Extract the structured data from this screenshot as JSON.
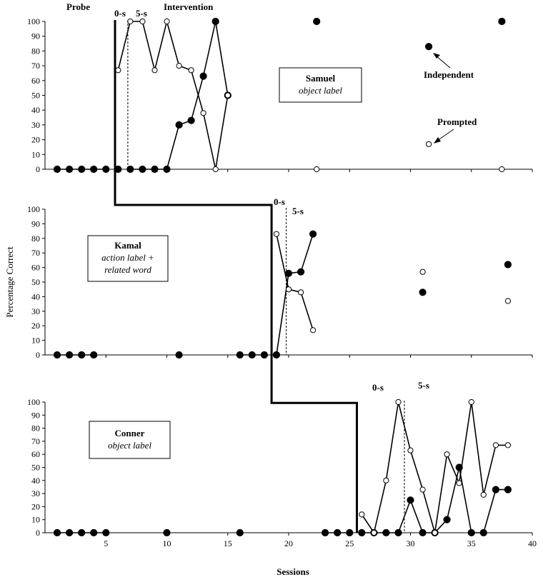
{
  "chart_data": {
    "type": "line",
    "ylabel": "Percentage Correct",
    "xlabel": "Sessions",
    "xlim": [
      0,
      40
    ],
    "ylim": [
      0,
      100
    ],
    "x_ticks": [
      5,
      10,
      15,
      20,
      25,
      30,
      35,
      40
    ],
    "y_ticks": [
      0,
      10,
      20,
      30,
      40,
      50,
      60,
      70,
      80,
      90,
      100
    ],
    "grid": false,
    "panels": [
      {
        "participant": "Samuel",
        "target": "object label",
        "phase_labels": [
          "Probe",
          "0-s",
          "5-s",
          "Intervention"
        ],
        "annotations": [
          "Independent",
          "Prompted"
        ],
        "series": [
          {
            "name": "Independent",
            "marker": "filled",
            "segments": [
              [
                [
                  1,
                  0
                ],
                [
                  2,
                  0
                ],
                [
                  3,
                  0
                ],
                [
                  4,
                  0
                ],
                [
                  5,
                  0
                ]
              ],
              [
                [
                  7,
                  0
                ],
                [
                  8,
                  0
                ],
                [
                  9,
                  0
                ],
                [
                  10,
                  0
                ],
                [
                  11,
                  30
                ],
                [
                  12,
                  33
                ],
                [
                  13,
                  63
                ],
                [
                  14,
                  100
                ],
                [
                  15,
                  50
                ]
              ]
            ],
            "points": [
              [
                6,
                0
              ],
              [
                22.3,
                100
              ],
              [
                31.5,
                83
              ],
              [
                37.5,
                100
              ]
            ]
          },
          {
            "name": "Prompted",
            "marker": "open",
            "segments": [
              [
                [
                  6,
                  67
                ],
                [
                  7,
                  100
                ],
                [
                  8,
                  100
                ],
                [
                  9,
                  67
                ],
                [
                  10,
                  100
                ],
                [
                  11,
                  70
                ],
                [
                  12,
                  67
                ],
                [
                  13,
                  38
                ],
                [
                  14,
                  0
                ],
                [
                  15,
                  50
                ]
              ]
            ],
            "points": [
              [
                22.3,
                0
              ],
              [
                31.5,
                17
              ],
              [
                37.5,
                0
              ]
            ]
          }
        ]
      },
      {
        "participant": "Kamal",
        "target": "action label + related word",
        "phase_labels": [
          "0-s",
          "5-s"
        ],
        "annotations": [],
        "series": [
          {
            "name": "Independent",
            "marker": "filled",
            "segments": [
              [
                [
                  1,
                  0
                ],
                [
                  2,
                  0
                ],
                [
                  3,
                  0
                ],
                [
                  4,
                  0
                ]
              ],
              [
                [
                  16,
                  0
                ],
                [
                  17,
                  0
                ],
                [
                  18,
                  0
                ]
              ],
              [
                [
                  19,
                  0
                ],
                [
                  20,
                  56
                ],
                [
                  21,
                  57
                ],
                [
                  22,
                  83
                ]
              ]
            ],
            "points": [
              [
                11,
                0
              ],
              [
                31,
                43
              ],
              [
                38,
                62
              ]
            ]
          },
          {
            "name": "Prompted",
            "marker": "open",
            "segments": [
              [
                [
                  19,
                  83
                ],
                [
                  20,
                  45
                ],
                [
                  21,
                  43
                ],
                [
                  22,
                  17
                ]
              ]
            ],
            "points": [
              [
                31,
                57
              ],
              [
                38,
                37
              ]
            ]
          }
        ]
      },
      {
        "participant": "Conner",
        "target": "object label",
        "phase_labels": [
          "0-s",
          "5-s"
        ],
        "annotations": [],
        "series": [
          {
            "name": "Independent",
            "marker": "filled",
            "segments": [
              [
                [
                  1,
                  0
                ],
                [
                  2,
                  0
                ],
                [
                  3,
                  0
                ],
                [
                  4,
                  0
                ],
                [
                  5,
                  0
                ]
              ],
              [
                [
                  23,
                  0
                ],
                [
                  24,
                  0
                ],
                [
                  25,
                  0
                ]
              ],
              [
                [
                  26,
                  0
                ],
                [
                  27,
                  0
                ],
                [
                  28,
                  0
                ],
                [
                  29,
                  0
                ],
                [
                  30,
                  25
                ],
                [
                  31,
                  0
                ],
                [
                  32,
                  0
                ],
                [
                  33,
                  10
                ],
                [
                  34,
                  50
                ],
                [
                  35,
                  0
                ],
                [
                  36,
                  0
                ],
                [
                  37,
                  33
                ],
                [
                  38,
                  33
                ]
              ]
            ],
            "points": [
              [
                10,
                0
              ],
              [
                16,
                0
              ]
            ]
          },
          {
            "name": "Prompted",
            "marker": "open",
            "segments": [
              [
                [
                  26,
                  14
                ],
                [
                  27,
                  0
                ],
                [
                  28,
                  40
                ],
                [
                  29,
                  100
                ],
                [
                  30,
                  63
                ],
                [
                  31,
                  33
                ],
                [
                  32,
                  0
                ],
                [
                  33,
                  60
                ],
                [
                  34,
                  38
                ],
                [
                  35,
                  100
                ],
                [
                  36,
                  29
                ],
                [
                  37,
                  67
                ],
                [
                  38,
                  67
                ]
              ]
            ],
            "points": []
          }
        ]
      }
    ]
  }
}
